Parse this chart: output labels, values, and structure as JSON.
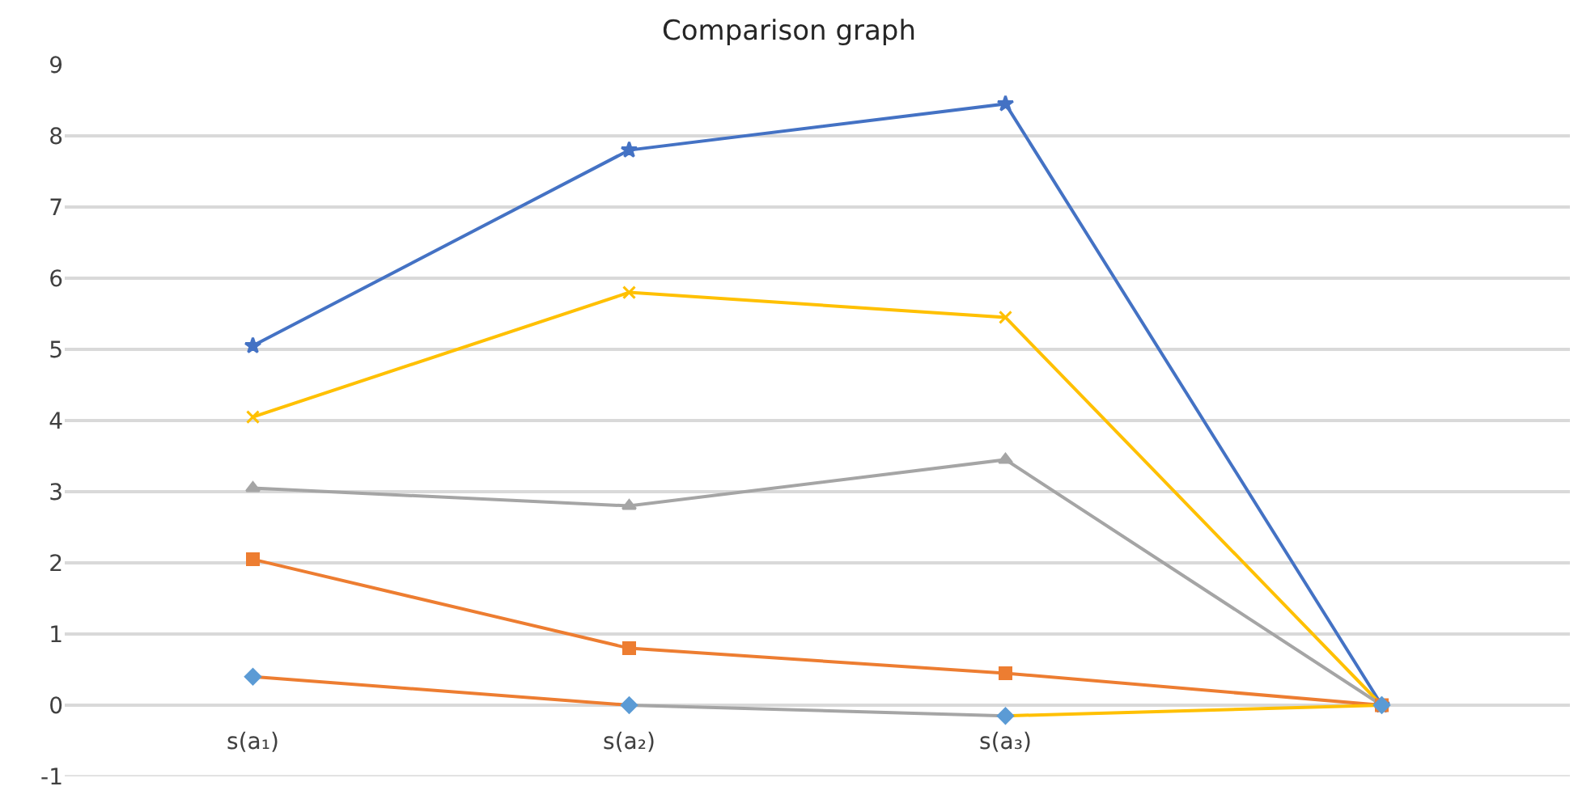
{
  "chart_data": {
    "type": "line",
    "title": "Comparison graph",
    "categories": [
      "s(a₁)",
      "s(a₂)",
      "s(a₃)",
      null
    ],
    "series": [
      {
        "color": "#4472c4",
        "marker": "star",
        "values": [
          5.05,
          7.8,
          8.45,
          0
        ]
      },
      {
        "color": "#ffc000",
        "marker": "cross",
        "values": [
          4.05,
          5.8,
          5.45,
          0
        ]
      },
      {
        "color": "#a5a5a5",
        "marker": "triangle",
        "values": [
          3.05,
          2.8,
          3.45,
          0
        ]
      },
      {
        "color": "#ed7d31",
        "marker": "square",
        "values": [
          2.05,
          0.8,
          0.45,
          0
        ]
      },
      {
        "color": "#ed7d31",
        "marker": "none",
        "values": [
          0.4,
          0,
          null,
          null
        ]
      },
      {
        "color": "#a5a5a5",
        "marker": "none",
        "values": [
          null,
          0,
          -0.15,
          null
        ]
      },
      {
        "color": "#ffc000",
        "marker": "none",
        "values": [
          null,
          null,
          -0.15,
          0
        ]
      },
      {
        "type": "scatter",
        "color": "#5b9bd5",
        "marker": "diamond",
        "values": [
          0.4,
          0,
          -0.15,
          0
        ]
      }
    ],
    "ylim": [
      -1,
      9
    ],
    "yticks": [
      -1,
      0,
      1,
      2,
      3,
      4,
      5,
      6,
      7,
      8,
      9
    ],
    "grid": "y"
  }
}
